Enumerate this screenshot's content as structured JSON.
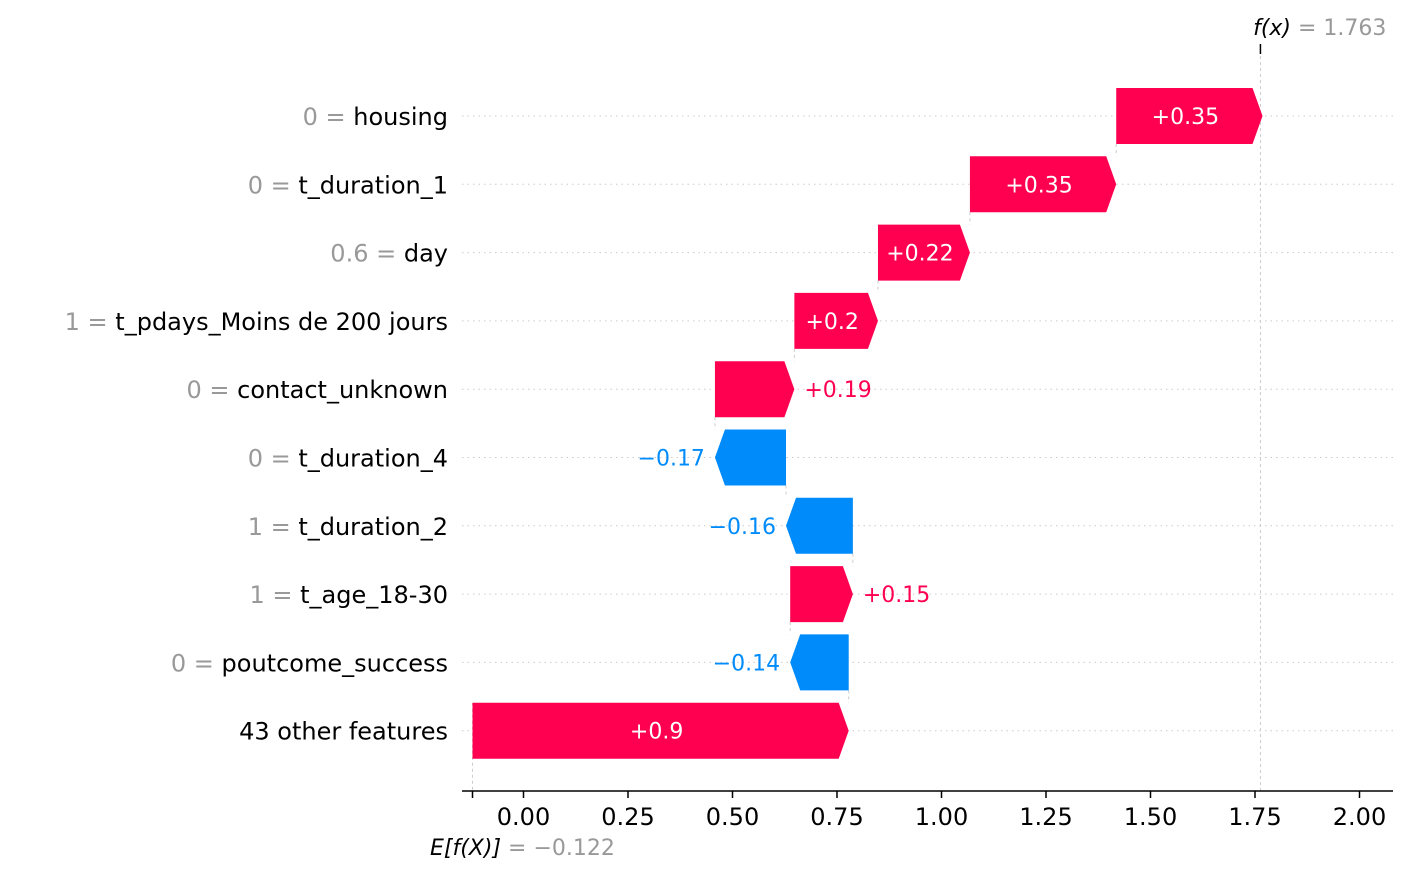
{
  "chart_data": {
    "type": "waterfall",
    "base_value": -0.122,
    "output_value": 1.763,
    "base_label": {
      "prefix": "E[f(X)]",
      "value_text": "= −0.122"
    },
    "output_label": {
      "prefix": "f(x)",
      "value_text": "= 1.763"
    },
    "xlim": [
      -0.135,
      2.05
    ],
    "xticks": [
      0.0,
      0.25,
      0.5,
      0.75,
      1.0,
      1.25,
      1.5,
      1.75,
      2.0
    ],
    "xtick_labels": [
      "0.00",
      "0.25",
      "0.50",
      "0.75",
      "1.00",
      "1.25",
      "1.50",
      "1.75",
      "2.00"
    ],
    "features": [
      {
        "value": "0",
        "name": "housing",
        "contribution": 0.35,
        "label": "+0.35"
      },
      {
        "value": "0",
        "name": "t_duration_1",
        "contribution": 0.35,
        "label": "+0.35"
      },
      {
        "value": "0.6",
        "name": "day",
        "contribution": 0.22,
        "label": "+0.22"
      },
      {
        "value": "1",
        "name": "t_pdays_Moins de 200 jours",
        "contribution": 0.2,
        "label": "+0.2"
      },
      {
        "value": "0",
        "name": "contact_unknown",
        "contribution": 0.19,
        "label": "+0.19"
      },
      {
        "value": "0",
        "name": "t_duration_4",
        "contribution": -0.17,
        "label": "−0.17"
      },
      {
        "value": "1",
        "name": "t_duration_2",
        "contribution": -0.16,
        "label": "−0.16"
      },
      {
        "value": "1",
        "name": "t_age_18-30",
        "contribution": 0.15,
        "label": "+0.15"
      },
      {
        "value": "0",
        "name": "poutcome_success",
        "contribution": -0.14,
        "label": "−0.14"
      },
      {
        "value": "",
        "name": "43 other features",
        "contribution": 0.9,
        "label": "+0.9"
      }
    ],
    "colors": {
      "positive": "#ff0051",
      "negative": "#008bfb",
      "value_gray": "#999999",
      "axis": "#000000",
      "grid": "#cccccc"
    }
  }
}
